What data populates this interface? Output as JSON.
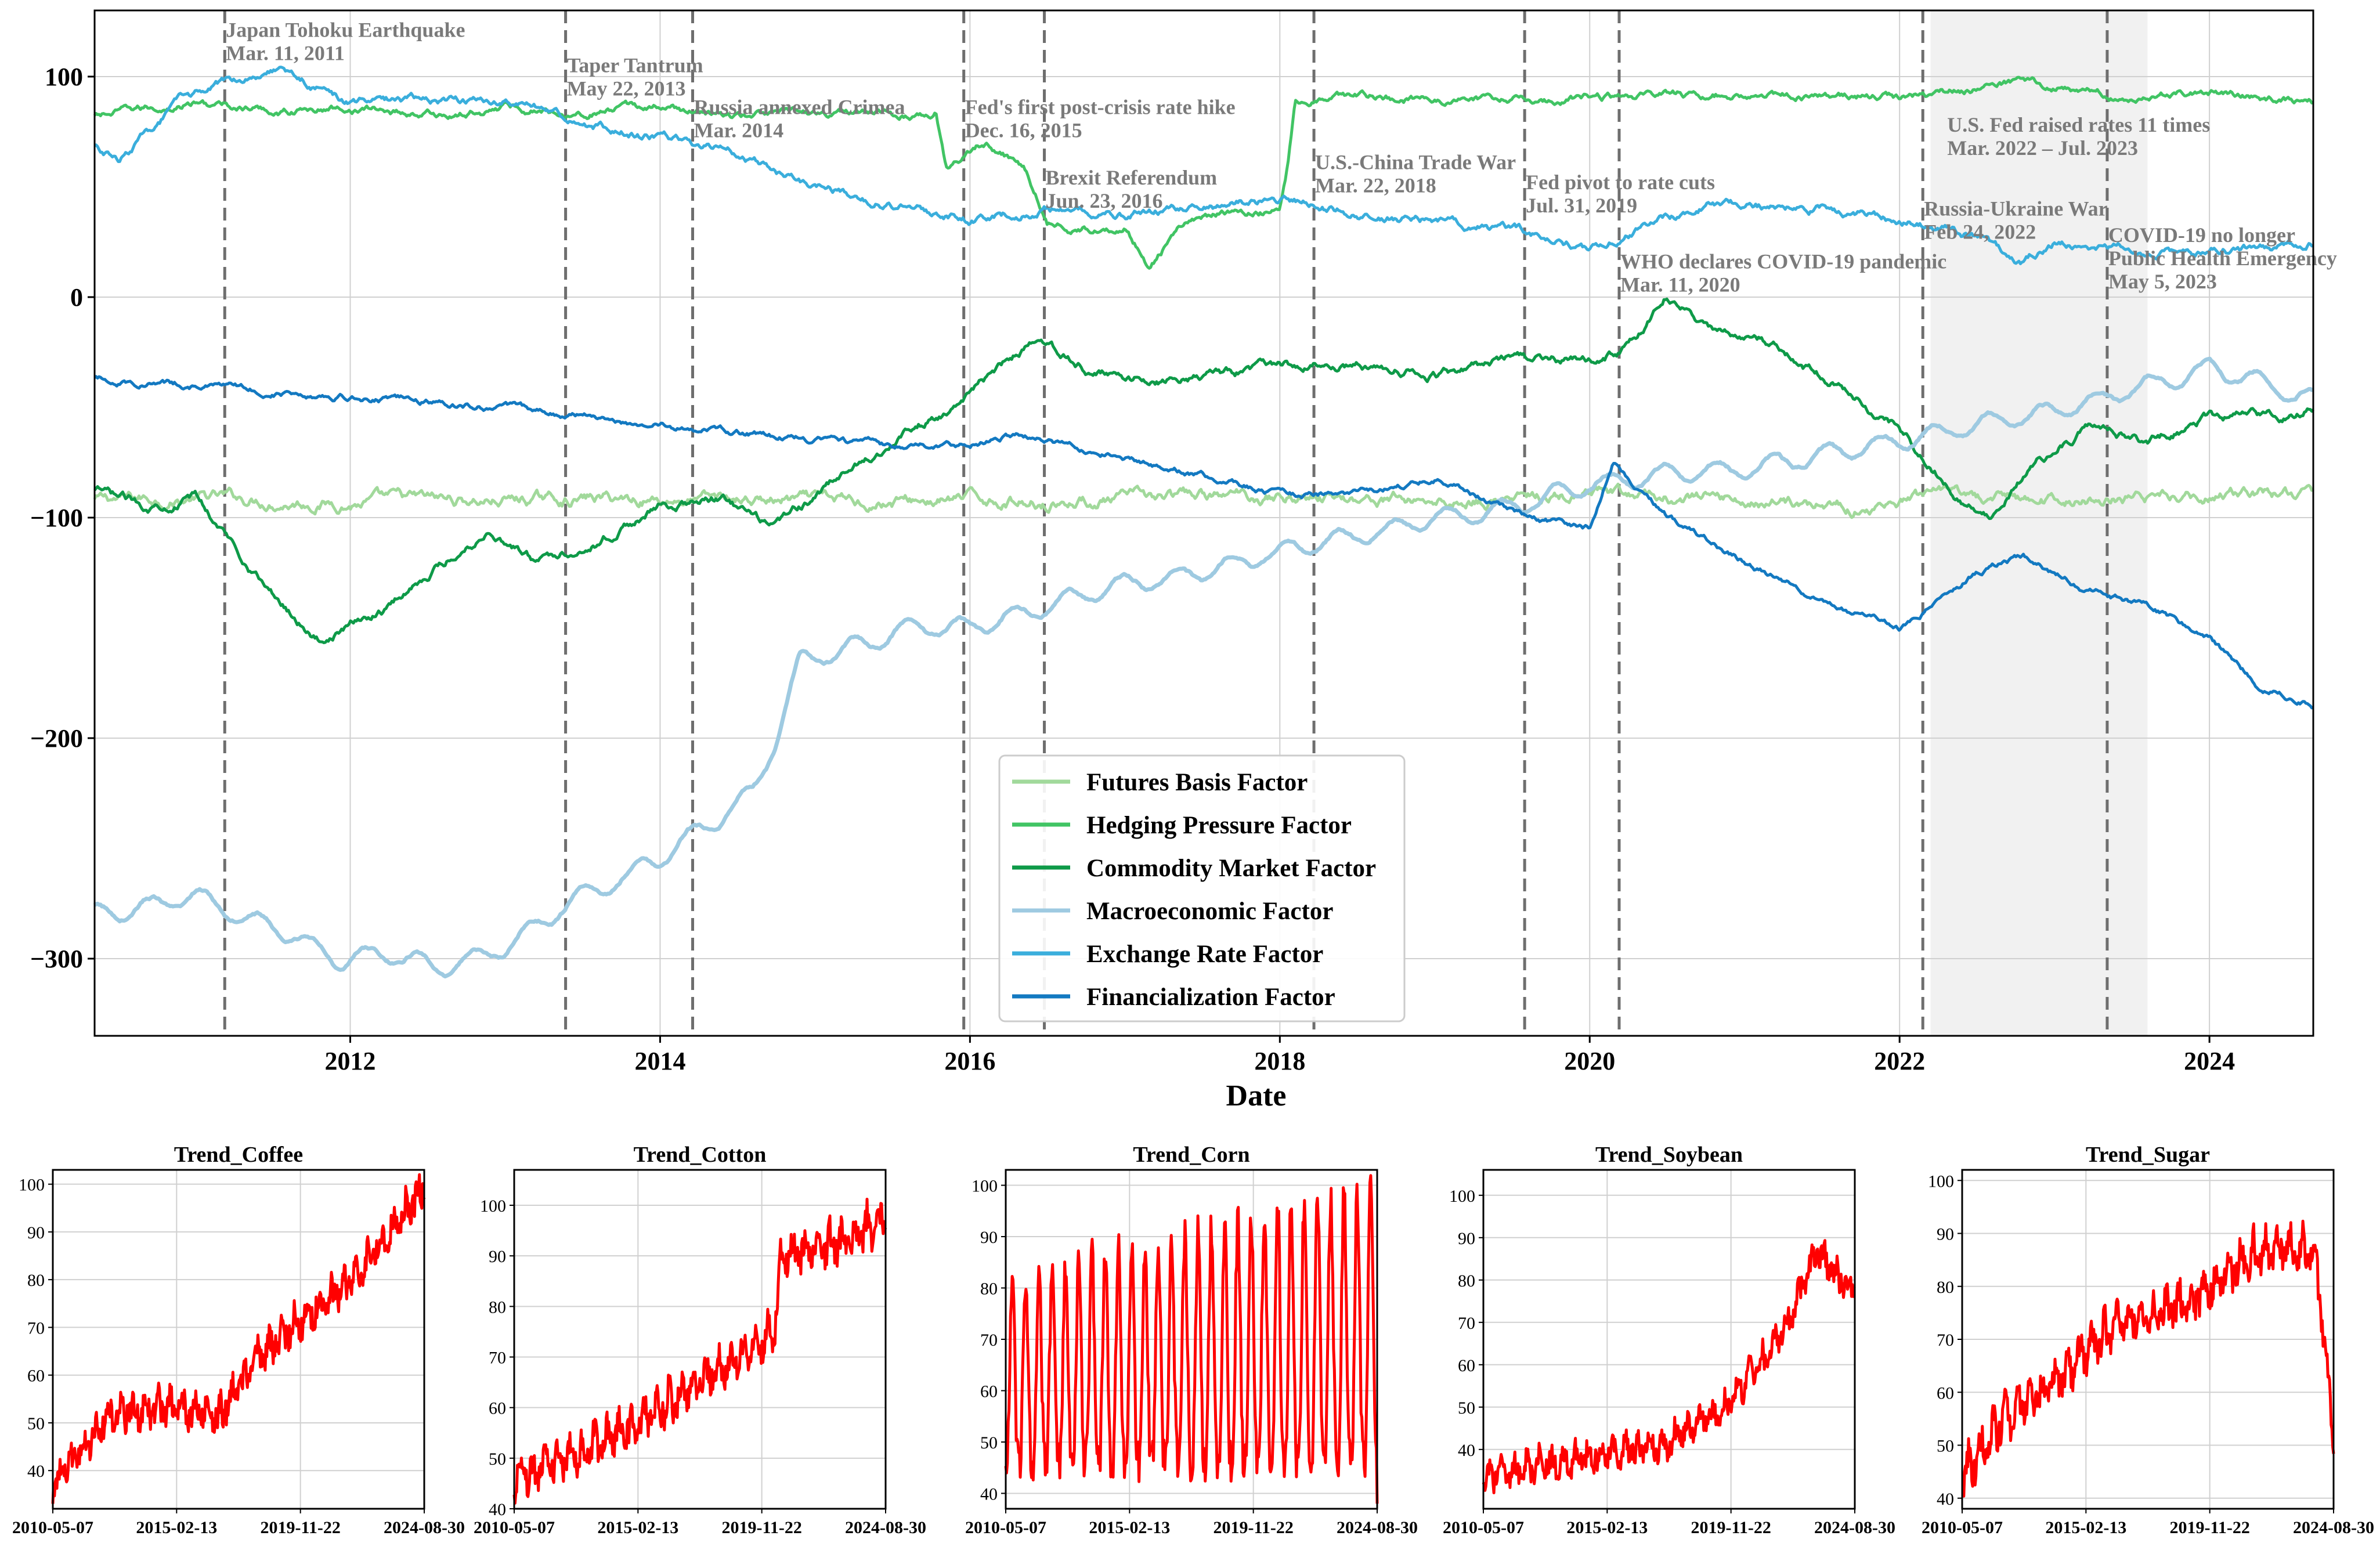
{
  "chart_data": [
    {
      "type": "line",
      "title": "",
      "xlabel": "Date",
      "ylabel": "",
      "xlim": [
        2010.35,
        2024.67
      ],
      "ylim": [
        -335,
        130
      ],
      "grid": true,
      "xticks": [
        2012,
        2014,
        2016,
        2018,
        2020,
        2022,
        2024
      ],
      "xtick_labels": [
        "2012",
        "2014",
        "2016",
        "2018",
        "2020",
        "2022",
        "2024"
      ],
      "yticks": [
        -300,
        -200,
        -100,
        0,
        100
      ],
      "ytick_labels": [
        "−300",
        "−200",
        "−100",
        "0",
        "100"
      ],
      "legend_position": "lower-center",
      "shaded_region": {
        "start": 2022.2,
        "end": 2023.6
      },
      "events": [
        {
          "x": 2011.19,
          "label": "Japan Tohoku Earthquake",
          "date": "Mar. 11, 2011",
          "label_y": 118
        },
        {
          "x": 2013.39,
          "label": "Taper Tantrum",
          "date": "May 22, 2013",
          "label_y": 102
        },
        {
          "x": 2014.21,
          "label": "Russia annexed Crimea",
          "date": "Mar. 2014",
          "label_y": 83
        },
        {
          "x": 2015.96,
          "label": "Fed's first post-crisis rate hike",
          "date": "Dec. 16, 2015",
          "label_y": 83
        },
        {
          "x": 2016.48,
          "label": "Brexit Referendum",
          "date": "Jun. 23, 2016",
          "label_y": 51
        },
        {
          "x": 2018.22,
          "label": "U.S.-China Trade War",
          "date": "Mar. 22, 2018",
          "label_y": 58
        },
        {
          "x": 2019.58,
          "label": "Fed pivot to rate cuts",
          "date": "Jul. 31, 2019",
          "label_y": 49
        },
        {
          "x": 2020.19,
          "label": "WHO declares COVID-19 pandemic",
          "date": "Mar. 11, 2020",
          "label_y": 13
        },
        {
          "x": 2022.15,
          "label": "Russia-Ukraine War",
          "date": "Feb 24, 2022",
          "label_y": 37
        },
        {
          "x": 2023.34,
          "label": "COVID-19 no longer",
          "label2": "Public Health Emergency",
          "date": "May 5, 2023",
          "label_y": 25
        },
        {
          "x": 2022.3,
          "label": "U.S. Fed raised rates 11 times",
          "date": "Mar. 2022 – Jul. 2023",
          "label_y": 75,
          "no_line": true
        }
      ],
      "series": [
        {
          "name": "Futures Basis Factor",
          "color": "#a1d99b",
          "noise": 3.2,
          "x": [
            2010.35,
            2011.0,
            2012.0,
            2013.0,
            2014.0,
            2015.0,
            2016.0,
            2017.0,
            2018.0,
            2019.0,
            2020.0,
            2021.0,
            2021.8,
            2022.2,
            2023.0,
            2024.0,
            2024.67
          ],
          "y": [
            -92,
            -91,
            -93,
            -92,
            -91,
            -93,
            -92,
            -92,
            -90,
            -92,
            -91,
            -92,
            -95,
            -92,
            -92,
            -90,
            -88
          ]
        },
        {
          "name": "Hedging Pressure Factor",
          "color": "#41c464",
          "noise": 2.0,
          "x": [
            2010.35,
            2011.0,
            2011.5,
            2012.0,
            2012.7,
            2013.0,
            2013.4,
            2014.0,
            2014.5,
            2015.0,
            2015.6,
            2015.78,
            2015.85,
            2016.1,
            2016.35,
            2016.5,
            2016.7,
            2017.0,
            2017.15,
            2017.4,
            2017.7,
            2018.0,
            2018.05,
            2018.1,
            2018.3,
            2019.0,
            2020.0,
            2021.0,
            2022.0,
            2022.8,
            2023.5,
            2024.0,
            2024.67
          ],
          "y": [
            82,
            88,
            84,
            86,
            82,
            87,
            84,
            86,
            82,
            84,
            82,
            85,
            60,
            70,
            60,
            35,
            30,
            33,
            15,
            35,
            38,
            40,
            60,
            90,
            92,
            90,
            90,
            92,
            90,
            98,
            90,
            94,
            88
          ]
        },
        {
          "name": "Commodity Market Factor",
          "color": "#0e9a48",
          "noise": 2.4,
          "x": [
            2010.35,
            2010.7,
            2011.0,
            2011.5,
            2011.8,
            2012.2,
            2012.5,
            2012.9,
            2013.2,
            2013.6,
            2014.0,
            2014.4,
            2014.7,
            2015.0,
            2015.5,
            2016.0,
            2016.4,
            2016.8,
            2017.2,
            2017.6,
            2018.0,
            2018.5,
            2019.0,
            2019.5,
            2020.0,
            2020.3,
            2020.5,
            2020.8,
            2021.2,
            2021.6,
            2022.0,
            2022.4,
            2022.6,
            2022.8,
            2023.2,
            2023.6,
            2024.0,
            2024.5,
            2024.67
          ],
          "y": [
            -88,
            -95,
            -90,
            -135,
            -155,
            -142,
            -125,
            -105,
            -120,
            -110,
            -95,
            -92,
            -105,
            -90,
            -65,
            -45,
            -20,
            -35,
            -38,
            -35,
            -32,
            -30,
            -35,
            -28,
            -30,
            -20,
            0,
            -15,
            -22,
            -40,
            -60,
            -92,
            -100,
            -80,
            -60,
            -65,
            -55,
            -55,
            -50
          ]
        },
        {
          "name": "Macroeconomic Factor",
          "color": "#9ecae1",
          "noise": 1.0,
          "x": [
            2010.35,
            2010.8,
            2011.0,
            2011.5,
            2011.9,
            2012.3,
            2012.6,
            2013.0,
            2013.4,
            2013.8,
            2014.1,
            2014.6,
            2014.75,
            2014.9,
            2015.2,
            2015.6,
            2016.0,
            2016.5,
            2017.0,
            2017.5,
            2018.0,
            2018.5,
            2019.0,
            2019.5,
            2020.0,
            2020.5,
            2021.0,
            2021.5,
            2022.0,
            2022.5,
            2023.0,
            2023.5,
            2024.0,
            2024.67
          ],
          "y": [
            -280,
            -275,
            -272,
            -285,
            -300,
            -298,
            -305,
            -295,
            -275,
            -262,
            -250,
            -225,
            -200,
            -165,
            -160,
            -150,
            -150,
            -140,
            -130,
            -125,
            -115,
            -108,
            -100,
            -95,
            -85,
            -80,
            -78,
            -72,
            -65,
            -58,
            -52,
            -42,
            -32,
            -45
          ]
        },
        {
          "name": "Exchange Rate Factor",
          "color": "#3aaedc",
          "noise": 2.2,
          "x": [
            2010.35,
            2010.5,
            2010.9,
            2011.3,
            2011.5,
            2011.8,
            2012.0,
            2012.5,
            2013.0,
            2013.5,
            2014.0,
            2014.5,
            2015.0,
            2015.5,
            2016.0,
            2016.5,
            2017.0,
            2017.5,
            2018.0,
            2018.5,
            2019.0,
            2019.5,
            2020.0,
            2020.3,
            2020.8,
            2021.5,
            2022.0,
            2022.5,
            2022.8,
            2023.0,
            2023.5,
            2024.0,
            2024.67
          ],
          "y": [
            68,
            62,
            88,
            100,
            105,
            95,
            88,
            90,
            88,
            80,
            72,
            65,
            50,
            42,
            35,
            40,
            38,
            40,
            45,
            38,
            35,
            30,
            22,
            30,
            42,
            40,
            35,
            28,
            15,
            25,
            22,
            20,
            25
          ]
        },
        {
          "name": "Financialization Factor",
          "color": "#1379c1",
          "noise": 1.6,
          "x": [
            2010.35,
            2011.0,
            2012.0,
            2013.0,
            2014.0,
            2015.0,
            2015.5,
            2016.0,
            2016.3,
            2016.8,
            2017.5,
            2018.0,
            2018.6,
            2019.0,
            2019.5,
            2020.0,
            2020.15,
            2020.5,
            2021.0,
            2021.5,
            2022.0,
            2022.5,
            2022.8,
            2023.2,
            2023.6,
            2024.0,
            2024.3,
            2024.67
          ],
          "y": [
            -37,
            -40,
            -45,
            -50,
            -58,
            -65,
            -68,
            -67,
            -62,
            -70,
            -80,
            -90,
            -88,
            -82,
            -98,
            -105,
            -75,
            -100,
            -120,
            -138,
            -150,
            -125,
            -118,
            -133,
            -140,
            -155,
            -175,
            -185
          ]
        }
      ]
    },
    {
      "type": "line",
      "title": "Trend_Coffee",
      "color": "#ff0000",
      "xtick_labels": [
        "2010-05-07",
        "2015-02-13",
        "2019-11-22",
        "2024-08-30"
      ],
      "yticks": [
        40,
        50,
        60,
        70,
        80,
        90,
        100
      ],
      "ylim": [
        32,
        103
      ],
      "shape": "trend_up",
      "noise": 3,
      "amplitude": 4,
      "x": [
        0,
        0.15,
        0.3,
        0.45,
        0.55,
        0.7,
        0.8,
        0.9,
        1.0
      ],
      "y": [
        35,
        50,
        52,
        50,
        62,
        72,
        78,
        88,
        98
      ]
    },
    {
      "type": "line",
      "title": "Trend_Cotton",
      "color": "#ff0000",
      "xtick_labels": [
        "2010-05-07",
        "2015-02-13",
        "2019-11-22",
        "2024-08-30"
      ],
      "yticks": [
        40,
        50,
        60,
        70,
        80,
        90,
        100
      ],
      "ylim": [
        40,
        107
      ],
      "shape": "trend_up",
      "noise": 3,
      "amplitude": 5,
      "x": [
        0,
        0.2,
        0.4,
        0.6,
        0.7,
        0.72,
        0.85,
        1.0
      ],
      "y": [
        44,
        50,
        58,
        68,
        73,
        88,
        90,
        95
      ]
    },
    {
      "type": "line",
      "title": "Trend_Corn",
      "color": "#ff0000",
      "xtick_labels": [
        "2010-05-07",
        "2015-02-13",
        "2019-11-22",
        "2024-08-30"
      ],
      "yticks": [
        40,
        50,
        60,
        70,
        80,
        90,
        100
      ],
      "ylim": [
        37,
        103
      ],
      "shape": "seasonal",
      "noise": 4,
      "amplitude": 16,
      "x": [
        0,
        0.5,
        1.0
      ],
      "y": [
        60,
        62,
        68
      ]
    },
    {
      "type": "line",
      "title": "Trend_Soybean",
      "color": "#ff0000",
      "xtick_labels": [
        "2010-05-07",
        "2015-02-13",
        "2019-11-22",
        "2024-08-30"
      ],
      "yticks": [
        40,
        50,
        60,
        70,
        80,
        90,
        100
      ],
      "ylim": [
        26,
        106
      ],
      "shape": "trend_up",
      "noise": 3,
      "amplitude": 4,
      "x": [
        0,
        0.3,
        0.5,
        0.65,
        0.8,
        0.9,
        1.0
      ],
      "y": [
        32,
        37,
        40,
        48,
        65,
        85,
        75
      ]
    },
    {
      "type": "line",
      "title": "Trend_Sugar",
      "color": "#ff0000",
      "xtick_labels": [
        "2010-05-07",
        "2015-02-13",
        "2019-11-22",
        "2024-08-30"
      ],
      "yticks": [
        40,
        50,
        60,
        70,
        80,
        90,
        100
      ],
      "ylim": [
        38,
        102
      ],
      "shape": "trend_up",
      "noise": 3,
      "amplitude": 5,
      "x": [
        0,
        0.1,
        0.25,
        0.4,
        0.6,
        0.8,
        0.95,
        1.0
      ],
      "y": [
        42,
        52,
        60,
        70,
        75,
        85,
        85,
        50
      ]
    }
  ]
}
